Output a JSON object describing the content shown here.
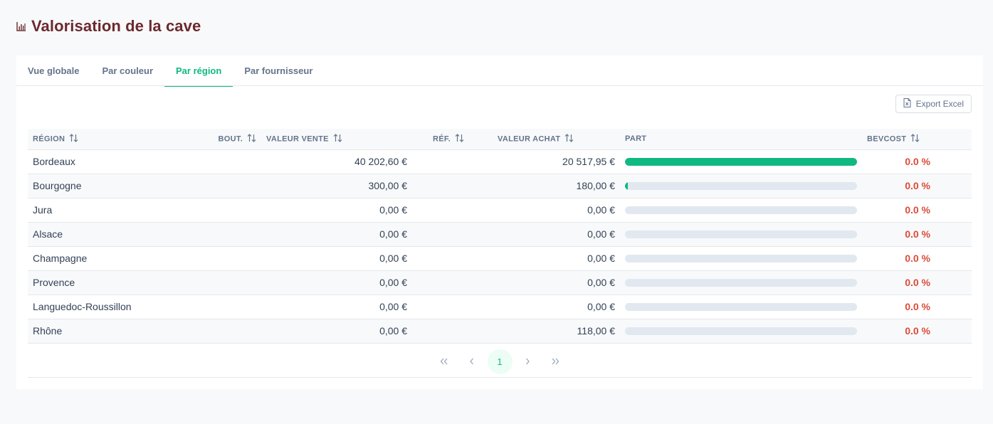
{
  "header": {
    "title": "Valorisation de la cave"
  },
  "tabs": [
    {
      "label": "Vue globale",
      "active": false
    },
    {
      "label": "Par couleur",
      "active": false
    },
    {
      "label": "Par région",
      "active": true
    },
    {
      "label": "Par fournisseur",
      "active": false
    }
  ],
  "toolbar": {
    "export_label": "Export Excel"
  },
  "table": {
    "columns": {
      "region": "Région",
      "bout": "Bout.",
      "valeur_vente": "Valeur vente",
      "ref": "Réf.",
      "valeur_achat": "Valeur achat",
      "part": "Part",
      "bevcost": "BevCost"
    },
    "rows": [
      {
        "region": "Bordeaux",
        "bout": "",
        "valeur_vente": "40 202,60 €",
        "ref": "",
        "valeur_achat": "20 517,95 €",
        "part": 1.0,
        "bevcost": "0.0 %"
      },
      {
        "region": "Bourgogne",
        "bout": "",
        "valeur_vente": "300,00 €",
        "ref": "",
        "valeur_achat": "180,00 €",
        "part": 0.0075,
        "bevcost": "0.0 %"
      },
      {
        "region": "Jura",
        "bout": "",
        "valeur_vente": "0,00 €",
        "ref": "",
        "valeur_achat": "0,00 €",
        "part": 0,
        "bevcost": "0.0 %"
      },
      {
        "region": "Alsace",
        "bout": "",
        "valeur_vente": "0,00 €",
        "ref": "",
        "valeur_achat": "0,00 €",
        "part": 0,
        "bevcost": "0.0 %"
      },
      {
        "region": "Champagne",
        "bout": "",
        "valeur_vente": "0,00 €",
        "ref": "",
        "valeur_achat": "0,00 €",
        "part": 0,
        "bevcost": "0.0 %"
      },
      {
        "region": "Provence",
        "bout": "",
        "valeur_vente": "0,00 €",
        "ref": "",
        "valeur_achat": "0,00 €",
        "part": 0,
        "bevcost": "0.0 %"
      },
      {
        "region": "Languedoc-Roussillon",
        "bout": "",
        "valeur_vente": "0,00 €",
        "ref": "",
        "valeur_achat": "0,00 €",
        "part": 0,
        "bevcost": "0.0 %"
      },
      {
        "region": "Rhône",
        "bout": "",
        "valeur_vente": "0,00 €",
        "ref": "",
        "valeur_achat": "118,00 €",
        "part": 0,
        "bevcost": "0.0 %"
      }
    ]
  },
  "pagination": {
    "first": "«",
    "prev": "‹",
    "current": "1",
    "next": "›",
    "last": "»"
  },
  "colors": {
    "accent": "#10b981",
    "title": "#6b2a2f",
    "bevcost": "#dc4b3a"
  },
  "icons": {
    "title": "bar-chart-icon",
    "export": "excel-file-icon",
    "sort": "sort-arrows-icon"
  }
}
